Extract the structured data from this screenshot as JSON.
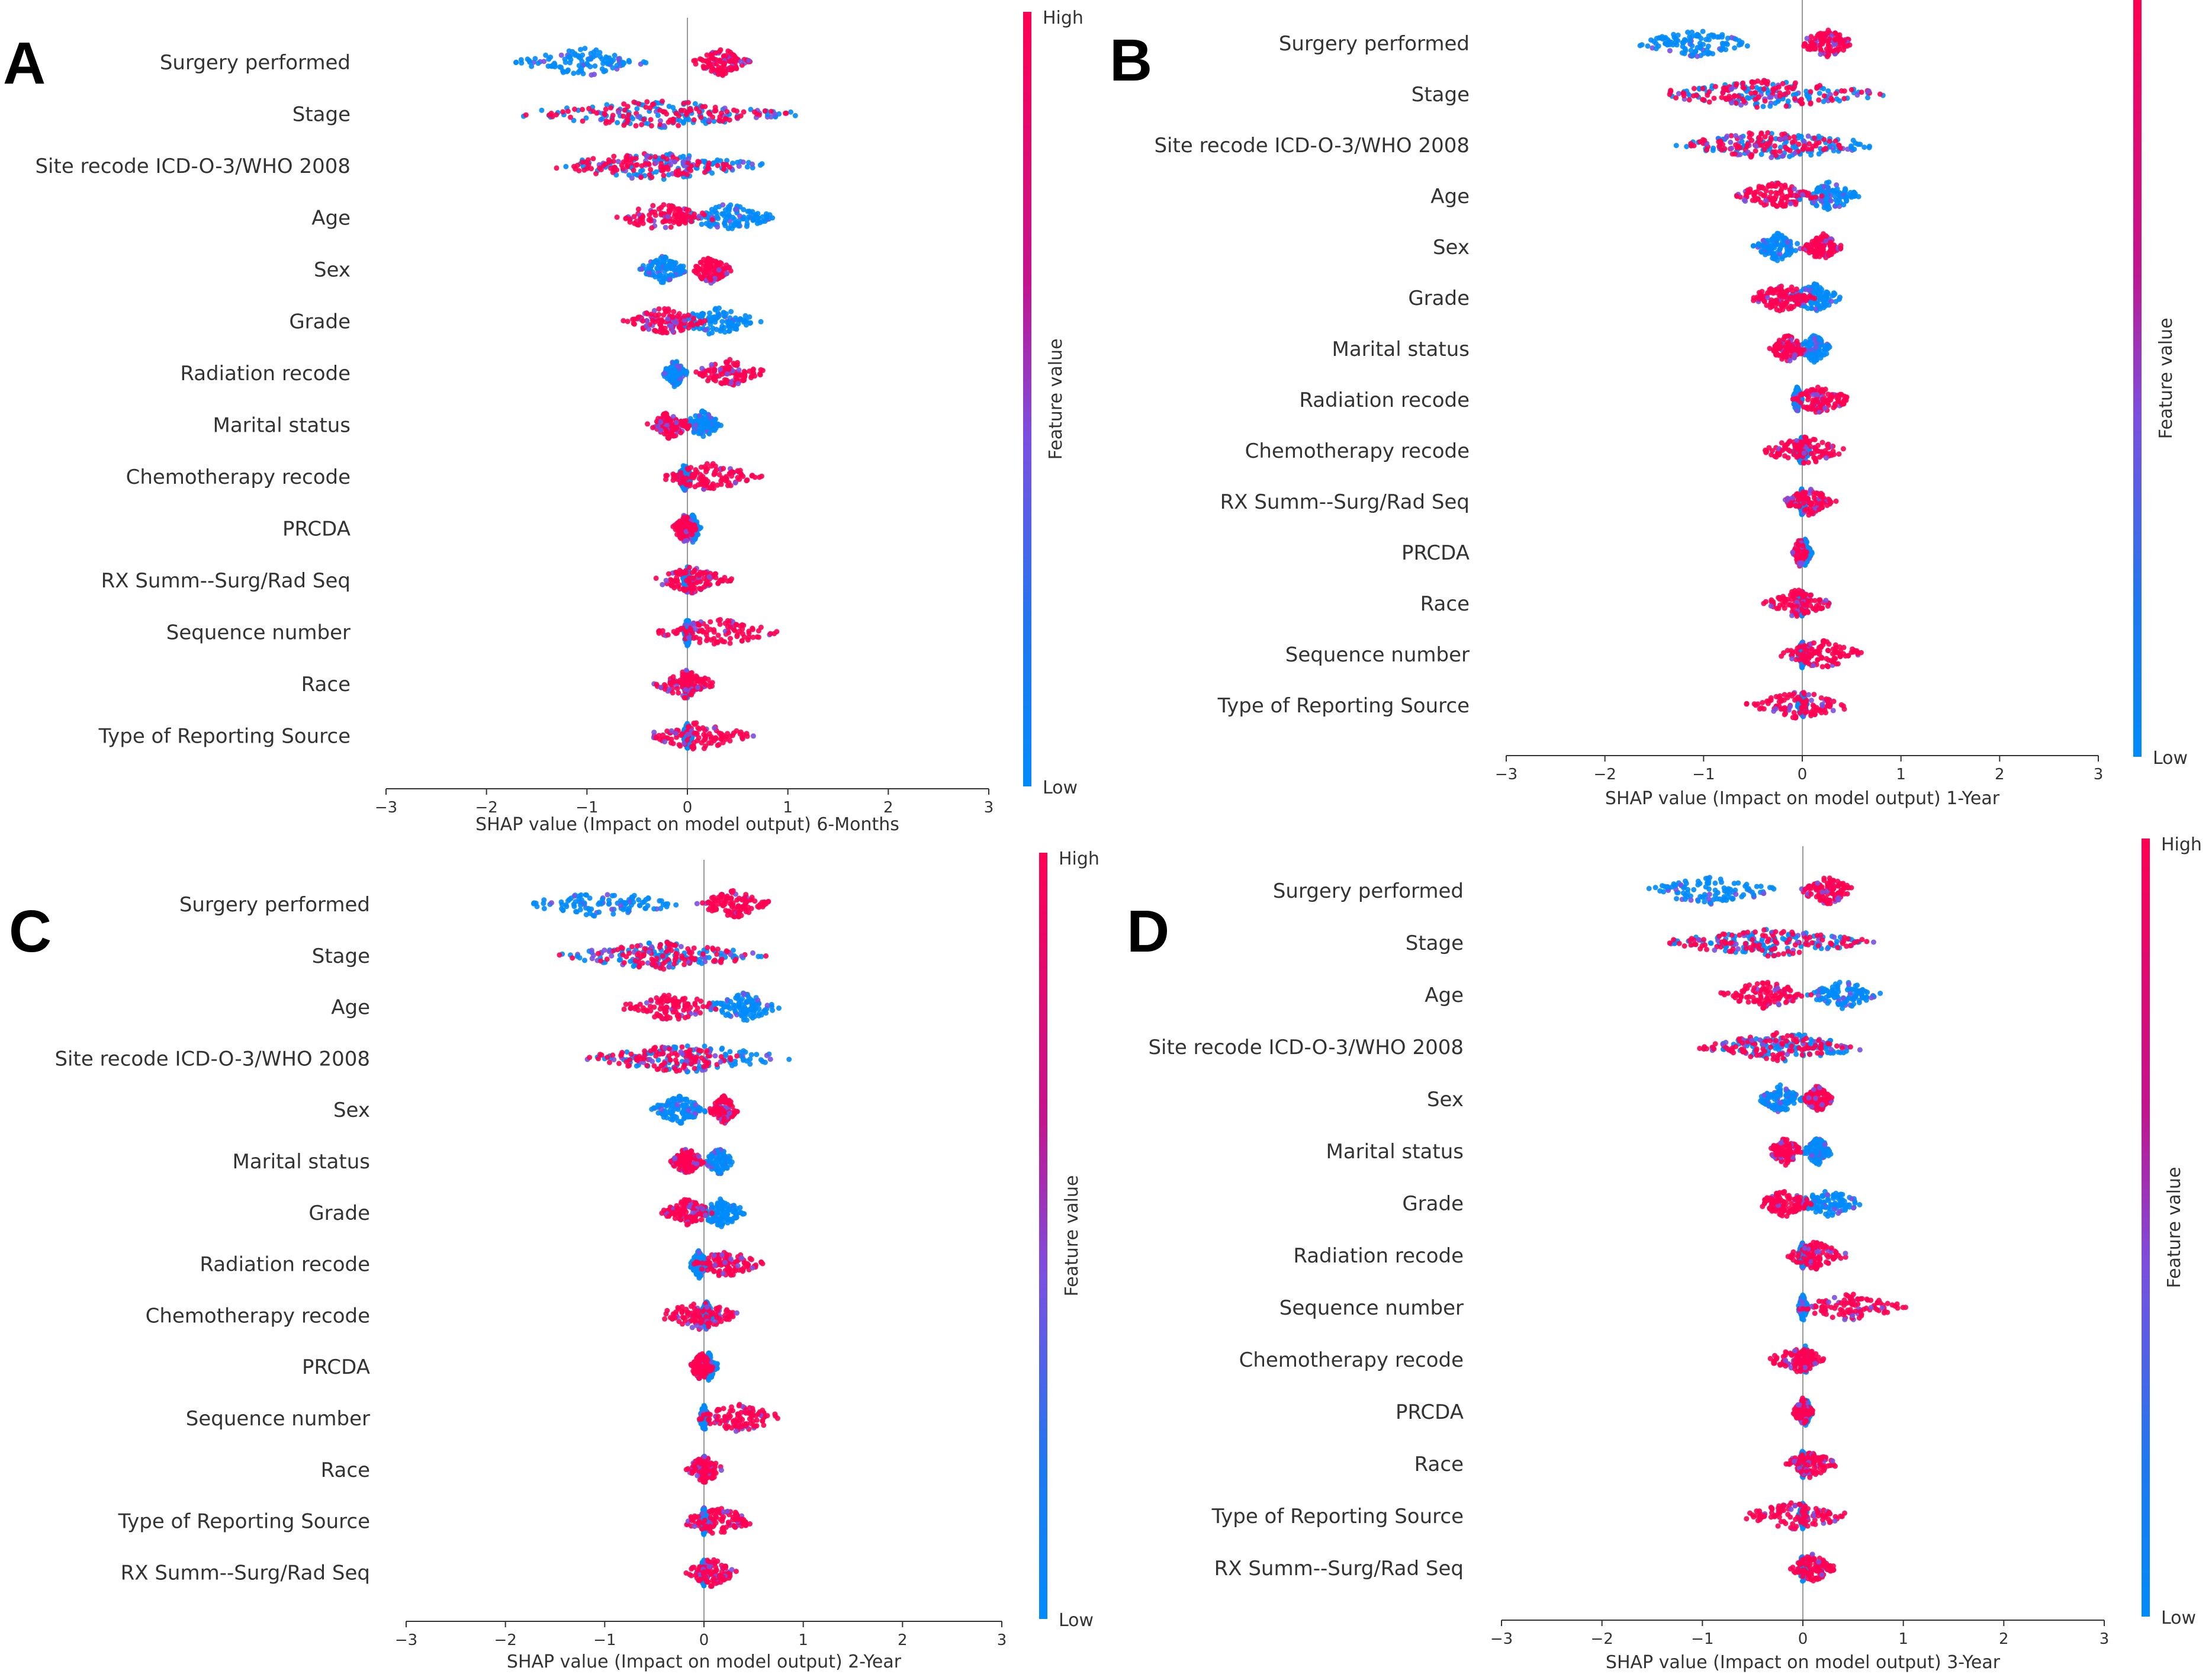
{
  "colors": {
    "low": "#008bfb",
    "mid": "#7b4fe0",
    "high": "#ff0052",
    "axis": "#333333",
    "zero_line": "#999999"
  },
  "chart_data": [
    {
      "id": "A",
      "letter": "A",
      "type": "beeswarm",
      "xlabel": "SHAP value (Impact on model output) 6-Months",
      "xlim": [
        -3,
        3
      ],
      "xticks": [
        "−3",
        "−2",
        "−1",
        "0",
        "1",
        "2",
        "3"
      ],
      "colorbar": {
        "high": "High",
        "low": "Low",
        "label": "Feature value"
      },
      "features": [
        {
          "name": "Surgery performed",
          "low_min": -1.75,
          "low_max": -0.3,
          "high_min": 0.05,
          "high_max": 0.65
        },
        {
          "name": "Stage",
          "low_min": -1.75,
          "low_max": 1.15,
          "high_min": -1.75,
          "high_max": 1.15
        },
        {
          "name": "Site recode ICD-O-3/WHO 2008",
          "low_min": -1.45,
          "low_max": 0.85,
          "high_min": -1.45,
          "high_max": 0.6
        },
        {
          "name": "Age",
          "low_min": -0.1,
          "low_max": 0.9,
          "high_min": -0.8,
          "high_max": 0.3
        },
        {
          "name": "Sex",
          "low_min": -0.5,
          "low_max": 0.0,
          "high_min": 0.0,
          "high_max": 0.45
        },
        {
          "name": "Grade",
          "low_min": -0.2,
          "low_max": 0.75,
          "high_min": -0.65,
          "high_max": 0.2
        },
        {
          "name": "Radiation recode",
          "low_min": -0.25,
          "low_max": 0.0,
          "high_min": 0.0,
          "high_max": 0.8
        },
        {
          "name": "Marital status",
          "low_min": -0.05,
          "low_max": 0.35,
          "high_min": -0.4,
          "high_max": 0.05
        },
        {
          "name": "Chemotherapy recode",
          "low_min": -0.1,
          "low_max": 0.05,
          "high_min": -0.3,
          "high_max": 0.75
        },
        {
          "name": "PRCDA",
          "low_min": -0.05,
          "low_max": 0.15,
          "high_min": -0.15,
          "high_max": 0.1
        },
        {
          "name": "RX Summ--Surg/Rad Seq",
          "low_min": -0.05,
          "low_max": 0.05,
          "high_min": -0.35,
          "high_max": 0.45
        },
        {
          "name": "Sequence number",
          "low_min": -0.05,
          "low_max": 0.05,
          "high_min": -0.35,
          "high_max": 0.95
        },
        {
          "name": "Race",
          "low_min": -0.05,
          "low_max": 0.05,
          "high_min": -0.35,
          "high_max": 0.3
        },
        {
          "name": "Type of Reporting Source",
          "low_min": -0.05,
          "low_max": 0.05,
          "high_min": -0.5,
          "high_max": 0.7
        }
      ]
    },
    {
      "id": "B",
      "letter": "B",
      "type": "beeswarm",
      "xlabel": "SHAP value (Impact on model output) 1-Year",
      "xlim": [
        -3,
        3
      ],
      "xticks": [
        "−3",
        "−2",
        "−1",
        "0",
        "1",
        "2",
        "3"
      ],
      "colorbar": {
        "high": "",
        "low": "Low",
        "label": "Feature value"
      },
      "features": [
        {
          "name": "Surgery performed",
          "low_min": -1.7,
          "low_max": -0.45,
          "high_min": -0.05,
          "high_max": 0.55
        },
        {
          "name": "Stage",
          "low_min": -1.6,
          "low_max": 0.9,
          "high_min": -1.6,
          "high_max": 0.9
        },
        {
          "name": "Site recode ICD-O-3/WHO 2008",
          "low_min": -1.35,
          "low_max": 0.85,
          "high_min": -1.35,
          "high_max": 0.55
        },
        {
          "name": "Age",
          "low_min": -0.1,
          "low_max": 0.65,
          "high_min": -0.75,
          "high_max": 0.2
        },
        {
          "name": "Sex",
          "low_min": -0.5,
          "low_max": 0.0,
          "high_min": 0.0,
          "high_max": 0.4
        },
        {
          "name": "Grade",
          "low_min": -0.15,
          "low_max": 0.4,
          "high_min": -0.55,
          "high_max": 0.15
        },
        {
          "name": "Marital status",
          "low_min": -0.05,
          "low_max": 0.3,
          "high_min": -0.35,
          "high_max": 0.05
        },
        {
          "name": "Radiation recode",
          "low_min": -0.1,
          "low_max": 0.0,
          "high_min": -0.15,
          "high_max": 0.5
        },
        {
          "name": "Chemotherapy recode",
          "low_min": -0.1,
          "low_max": 0.1,
          "high_min": -0.45,
          "high_max": 0.5
        },
        {
          "name": "RX Summ--Surg/Rad Seq",
          "low_min": -0.05,
          "low_max": 0.05,
          "high_min": -0.2,
          "high_max": 0.35
        },
        {
          "name": "PRCDA",
          "low_min": -0.05,
          "low_max": 0.1,
          "high_min": -0.1,
          "high_max": 0.05
        },
        {
          "name": "Race",
          "low_min": -0.05,
          "low_max": 0.05,
          "high_min": -0.4,
          "high_max": 0.3
        },
        {
          "name": "Sequence number",
          "low_min": -0.05,
          "low_max": 0.05,
          "high_min": -0.25,
          "high_max": 0.65
        },
        {
          "name": "Type of Reporting Source",
          "low_min": -0.05,
          "low_max": 0.05,
          "high_min": -0.6,
          "high_max": 0.55
        }
      ]
    },
    {
      "id": "C",
      "letter": "C",
      "type": "beeswarm",
      "xlabel": "SHAP value (Impact on model output) 2-Year",
      "xlim": [
        -3,
        3
      ],
      "xticks": [
        "−3",
        "−2",
        "−1",
        "0",
        "1",
        "2",
        "3"
      ],
      "colorbar": {
        "high": "High",
        "low": "Low",
        "label": "Feature value"
      },
      "features": [
        {
          "name": "Surgery performed",
          "low_min": -1.8,
          "low_max": -0.25,
          "high_min": -0.1,
          "high_max": 0.7
        },
        {
          "name": "Stage",
          "low_min": -1.5,
          "low_max": 0.65,
          "high_min": -1.5,
          "high_max": 0.65
        },
        {
          "name": "Age",
          "low_min": 0.0,
          "low_max": 0.8,
          "high_min": -0.85,
          "high_max": 0.2
        },
        {
          "name": "Site recode ICD-O-3/WHO 2008",
          "low_min": -1.25,
          "low_max": 0.95,
          "high_min": -1.25,
          "high_max": 0.5
        },
        {
          "name": "Sex",
          "low_min": -0.55,
          "low_max": 0.05,
          "high_min": 0.05,
          "high_max": 0.35
        },
        {
          "name": "Marital status",
          "low_min": 0.0,
          "low_max": 0.3,
          "high_min": -0.35,
          "high_max": 0.0
        },
        {
          "name": "Grade",
          "low_min": -0.1,
          "low_max": 0.45,
          "high_min": -0.45,
          "high_max": 0.1
        },
        {
          "name": "Radiation recode",
          "low_min": -0.15,
          "low_max": 0.05,
          "high_min": -0.15,
          "high_max": 0.6
        },
        {
          "name": "Chemotherapy recode",
          "low_min": -0.05,
          "low_max": 0.1,
          "high_min": -0.5,
          "high_max": 0.4
        },
        {
          "name": "PRCDA",
          "low_min": -0.05,
          "low_max": 0.15,
          "high_min": -0.15,
          "high_max": 0.1
        },
        {
          "name": "Sequence number",
          "low_min": -0.05,
          "low_max": 0.05,
          "high_min": -0.15,
          "high_max": 0.85
        },
        {
          "name": "Race",
          "low_min": -0.05,
          "low_max": 0.05,
          "high_min": -0.2,
          "high_max": 0.2
        },
        {
          "name": "Type of Reporting Source",
          "low_min": -0.05,
          "low_max": 0.05,
          "high_min": -0.25,
          "high_max": 0.55
        },
        {
          "name": "RX Summ--Surg/Rad Seq",
          "low_min": -0.05,
          "low_max": 0.05,
          "high_min": -0.2,
          "high_max": 0.35
        }
      ]
    },
    {
      "id": "D",
      "letter": "D",
      "type": "beeswarm",
      "xlabel": "SHAP value (Impact on model output) 3-Year",
      "xlim": [
        -3,
        3
      ],
      "xticks": [
        "−3",
        "−2",
        "−1",
        "0",
        "1",
        "2",
        "3"
      ],
      "colorbar": {
        "high": "High",
        "low": "Low",
        "label": "Feature value"
      },
      "features": [
        {
          "name": "Surgery performed",
          "low_min": -1.65,
          "low_max": -0.2,
          "high_min": -0.05,
          "high_max": 0.55
        },
        {
          "name": "Stage",
          "low_min": -1.45,
          "low_max": 0.8,
          "high_min": -1.45,
          "high_max": 0.8
        },
        {
          "name": "Age",
          "low_min": 0.0,
          "low_max": 0.8,
          "high_min": -0.85,
          "high_max": 0.1
        },
        {
          "name": "Site recode ICD-O-3/WHO 2008",
          "low_min": -1.05,
          "low_max": 0.75,
          "high_min": -1.05,
          "high_max": 0.5
        },
        {
          "name": "Sex",
          "low_min": -0.45,
          "low_max": 0.0,
          "high_min": 0.0,
          "high_max": 0.3
        },
        {
          "name": "Marital status",
          "low_min": 0.0,
          "low_max": 0.3,
          "high_min": -0.35,
          "high_max": 0.0
        },
        {
          "name": "Grade",
          "low_min": -0.1,
          "low_max": 0.6,
          "high_min": -0.45,
          "high_max": 0.1
        },
        {
          "name": "Radiation recode",
          "low_min": -0.05,
          "low_max": 0.05,
          "high_min": -0.2,
          "high_max": 0.45
        },
        {
          "name": "Sequence number",
          "low_min": -0.05,
          "low_max": 0.05,
          "high_min": -0.1,
          "high_max": 1.05
        },
        {
          "name": "Chemotherapy recode",
          "low_min": -0.05,
          "low_max": 0.1,
          "high_min": -0.35,
          "high_max": 0.25
        },
        {
          "name": "PRCDA",
          "low_min": -0.05,
          "low_max": 0.1,
          "high_min": -0.1,
          "high_max": 0.1
        },
        {
          "name": "Race",
          "low_min": -0.05,
          "low_max": 0.05,
          "high_min": -0.2,
          "high_max": 0.35
        },
        {
          "name": "Type of Reporting Source",
          "low_min": -0.05,
          "low_max": 0.05,
          "high_min": -0.65,
          "high_max": 0.5
        },
        {
          "name": "RX Summ--Surg/Rad Seq",
          "low_min": -0.05,
          "low_max": 0.05,
          "high_min": -0.15,
          "high_max": 0.35
        }
      ]
    }
  ]
}
